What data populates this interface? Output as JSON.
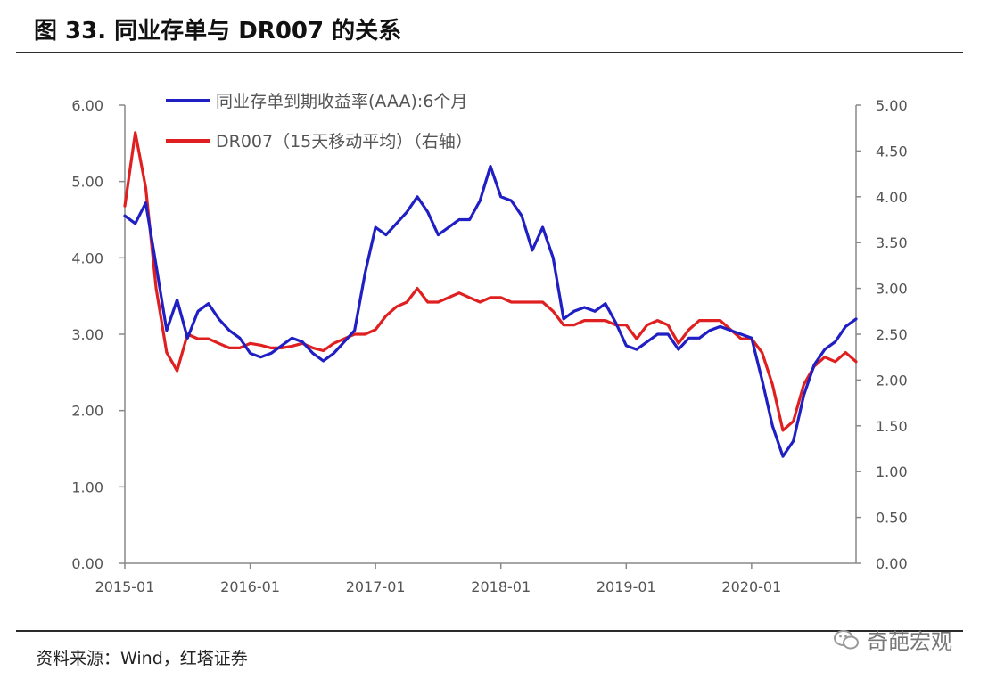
{
  "figure": {
    "title": "图 33. 同业存单与 DR007 的关系",
    "source": "资料来源：Wind，红塔证券",
    "watermark": "奇葩宏观"
  },
  "chart_data": {
    "type": "line",
    "x_ticks": [
      "2015-01",
      "2016-01",
      "2017-01",
      "2018-01",
      "2019-01",
      "2020-01"
    ],
    "x_range": [
      "2015-01",
      "2020-11"
    ],
    "y_left": {
      "ticks": [
        "0.00",
        "1.00",
        "2.00",
        "3.00",
        "4.00",
        "5.00",
        "6.00"
      ],
      "range": [
        0,
        6
      ]
    },
    "y_right": {
      "ticks": [
        "0.00",
        "0.50",
        "1.00",
        "1.50",
        "2.00",
        "2.50",
        "3.00",
        "3.50",
        "4.00",
        "4.50",
        "5.00"
      ],
      "range": [
        0,
        5
      ]
    },
    "grid": false,
    "legend_position": "top-center",
    "series": [
      {
        "name": "同业存单到期收益率(AAA):6个月",
        "axis": "left",
        "color": "#1f1fc4",
        "points": [
          [
            "2015-01",
            4.55
          ],
          [
            "2015-02",
            4.45
          ],
          [
            "2015-03",
            4.72
          ],
          [
            "2015-04",
            3.9
          ],
          [
            "2015-05",
            3.05
          ],
          [
            "2015-06",
            3.45
          ],
          [
            "2015-07",
            2.95
          ],
          [
            "2015-08",
            3.3
          ],
          [
            "2015-09",
            3.4
          ],
          [
            "2015-10",
            3.2
          ],
          [
            "2015-11",
            3.05
          ],
          [
            "2015-12",
            2.95
          ],
          [
            "2016-01",
            2.75
          ],
          [
            "2016-02",
            2.7
          ],
          [
            "2016-03",
            2.75
          ],
          [
            "2016-04",
            2.85
          ],
          [
            "2016-05",
            2.95
          ],
          [
            "2016-06",
            2.9
          ],
          [
            "2016-07",
            2.75
          ],
          [
            "2016-08",
            2.65
          ],
          [
            "2016-09",
            2.75
          ],
          [
            "2016-10",
            2.9
          ],
          [
            "2016-11",
            3.05
          ],
          [
            "2016-12",
            3.8
          ],
          [
            "2017-01",
            4.4
          ],
          [
            "2017-02",
            4.3
          ],
          [
            "2017-03",
            4.45
          ],
          [
            "2017-04",
            4.6
          ],
          [
            "2017-05",
            4.8
          ],
          [
            "2017-06",
            4.6
          ],
          [
            "2017-07",
            4.3
          ],
          [
            "2017-08",
            4.4
          ],
          [
            "2017-09",
            4.5
          ],
          [
            "2017-10",
            4.5
          ],
          [
            "2017-11",
            4.75
          ],
          [
            "2017-12",
            5.2
          ],
          [
            "2018-01",
            4.8
          ],
          [
            "2018-02",
            4.75
          ],
          [
            "2018-03",
            4.55
          ],
          [
            "2018-04",
            4.1
          ],
          [
            "2018-05",
            4.4
          ],
          [
            "2018-06",
            4.0
          ],
          [
            "2018-07",
            3.2
          ],
          [
            "2018-08",
            3.3
          ],
          [
            "2018-09",
            3.35
          ],
          [
            "2018-10",
            3.3
          ],
          [
            "2018-11",
            3.4
          ],
          [
            "2018-12",
            3.15
          ],
          [
            "2019-01",
            2.85
          ],
          [
            "2019-02",
            2.8
          ],
          [
            "2019-03",
            2.9
          ],
          [
            "2019-04",
            3.0
          ],
          [
            "2019-05",
            3.0
          ],
          [
            "2019-06",
            2.8
          ],
          [
            "2019-07",
            2.95
          ],
          [
            "2019-08",
            2.95
          ],
          [
            "2019-09",
            3.05
          ],
          [
            "2019-10",
            3.1
          ],
          [
            "2019-11",
            3.05
          ],
          [
            "2019-12",
            3.0
          ],
          [
            "2020-01",
            2.95
          ],
          [
            "2020-02",
            2.4
          ],
          [
            "2020-03",
            1.8
          ],
          [
            "2020-04",
            1.4
          ],
          [
            "2020-05",
            1.6
          ],
          [
            "2020-06",
            2.2
          ],
          [
            "2020-07",
            2.6
          ],
          [
            "2020-08",
            2.8
          ],
          [
            "2020-09",
            2.9
          ],
          [
            "2020-10",
            3.1
          ],
          [
            "2020-11",
            3.2
          ]
        ]
      },
      {
        "name": "DR007（15天移动平均）（右轴）",
        "axis": "right",
        "color": "#e02020",
        "points": [
          [
            "2015-01",
            3.9
          ],
          [
            "2015-02",
            4.7
          ],
          [
            "2015-03",
            4.1
          ],
          [
            "2015-04",
            3.0
          ],
          [
            "2015-05",
            2.3
          ],
          [
            "2015-06",
            2.1
          ],
          [
            "2015-07",
            2.5
          ],
          [
            "2015-08",
            2.45
          ],
          [
            "2015-09",
            2.45
          ],
          [
            "2015-10",
            2.4
          ],
          [
            "2015-11",
            2.35
          ],
          [
            "2015-12",
            2.35
          ],
          [
            "2016-01",
            2.4
          ],
          [
            "2016-02",
            2.38
          ],
          [
            "2016-03",
            2.35
          ],
          [
            "2016-04",
            2.35
          ],
          [
            "2016-05",
            2.37
          ],
          [
            "2016-06",
            2.4
          ],
          [
            "2016-07",
            2.35
          ],
          [
            "2016-08",
            2.32
          ],
          [
            "2016-09",
            2.4
          ],
          [
            "2016-10",
            2.45
          ],
          [
            "2016-11",
            2.5
          ],
          [
            "2016-12",
            2.5
          ],
          [
            "2017-01",
            2.55
          ],
          [
            "2017-02",
            2.7
          ],
          [
            "2017-03",
            2.8
          ],
          [
            "2017-04",
            2.85
          ],
          [
            "2017-05",
            3.0
          ],
          [
            "2017-06",
            2.85
          ],
          [
            "2017-07",
            2.85
          ],
          [
            "2017-08",
            2.9
          ],
          [
            "2017-09",
            2.95
          ],
          [
            "2017-10",
            2.9
          ],
          [
            "2017-11",
            2.85
          ],
          [
            "2017-12",
            2.9
          ],
          [
            "2018-01",
            2.9
          ],
          [
            "2018-02",
            2.85
          ],
          [
            "2018-03",
            2.85
          ],
          [
            "2018-04",
            2.85
          ],
          [
            "2018-05",
            2.85
          ],
          [
            "2018-06",
            2.75
          ],
          [
            "2018-07",
            2.6
          ],
          [
            "2018-08",
            2.6
          ],
          [
            "2018-09",
            2.65
          ],
          [
            "2018-10",
            2.65
          ],
          [
            "2018-11",
            2.65
          ],
          [
            "2018-12",
            2.6
          ],
          [
            "2019-01",
            2.6
          ],
          [
            "2019-02",
            2.45
          ],
          [
            "2019-03",
            2.6
          ],
          [
            "2019-04",
            2.65
          ],
          [
            "2019-05",
            2.6
          ],
          [
            "2019-06",
            2.4
          ],
          [
            "2019-07",
            2.55
          ],
          [
            "2019-08",
            2.65
          ],
          [
            "2019-09",
            2.65
          ],
          [
            "2019-10",
            2.65
          ],
          [
            "2019-11",
            2.55
          ],
          [
            "2019-12",
            2.45
          ],
          [
            "2020-01",
            2.45
          ],
          [
            "2020-02",
            2.3
          ],
          [
            "2020-03",
            1.95
          ],
          [
            "2020-04",
            1.45
          ],
          [
            "2020-05",
            1.55
          ],
          [
            "2020-06",
            1.95
          ],
          [
            "2020-07",
            2.15
          ],
          [
            "2020-08",
            2.25
          ],
          [
            "2020-09",
            2.2
          ],
          [
            "2020-10",
            2.3
          ],
          [
            "2020-11",
            2.2
          ]
        ]
      }
    ]
  }
}
